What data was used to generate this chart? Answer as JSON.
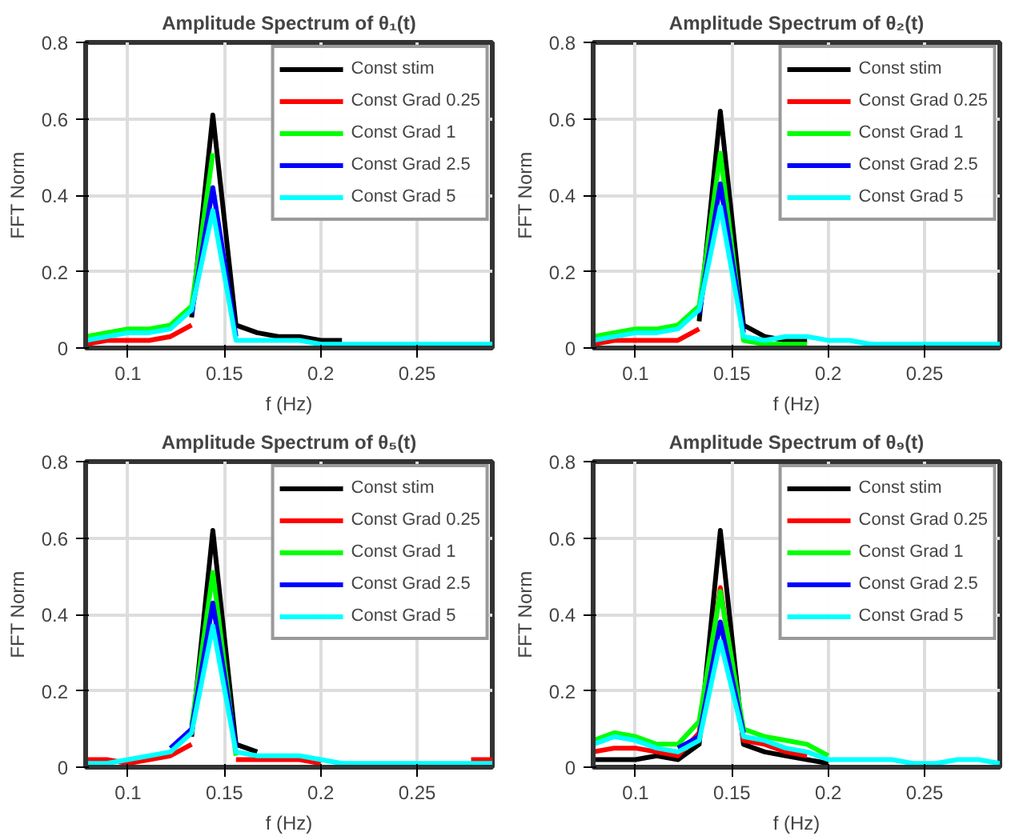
{
  "chart_data": [
    {
      "type": "line",
      "title": "Amplitude Spectrum of θ₁(t)",
      "xlabel": "f (Hz)",
      "ylabel": "FFT Norm",
      "x": [
        0.078,
        0.089,
        0.1,
        0.111,
        0.122,
        0.133,
        0.144,
        0.156,
        0.167,
        0.178,
        0.189,
        0.2,
        0.211,
        0.222,
        0.233,
        0.244,
        0.256,
        0.267,
        0.278,
        0.289
      ],
      "xlim": [
        0.078,
        0.289
      ],
      "ylim": [
        0,
        0.8
      ],
      "xticks": [
        0.1,
        0.15,
        0.2,
        0.25
      ],
      "yticks": [
        0,
        0.2,
        0.4,
        0.6,
        0.8
      ],
      "grid": true,
      "legend": "top right",
      "line_style": "solid",
      "series": [
        {
          "name": "Const stim",
          "color": "#000000",
          "values": [
            null,
            null,
            null,
            null,
            null,
            0.08,
            0.61,
            0.06,
            0.04,
            0.03,
            0.03,
            0.02,
            0.02,
            null,
            null,
            null,
            null,
            null,
            null,
            null
          ]
        },
        {
          "name": "Const Grad 0.25",
          "color": "#ff0000",
          "values": [
            0.01,
            0.02,
            0.02,
            0.02,
            0.03,
            0.06,
            null,
            null,
            null,
            null,
            null,
            null,
            null,
            null,
            null,
            null,
            null,
            null,
            null,
            null
          ]
        },
        {
          "name": "Const Grad 1",
          "color": "#00ff00",
          "values": [
            0.03,
            0.04,
            0.05,
            0.05,
            0.06,
            0.11,
            0.51,
            null,
            null,
            null,
            null,
            null,
            null,
            null,
            null,
            null,
            null,
            null,
            null,
            null
          ]
        },
        {
          "name": "Const Grad 2.5",
          "color": "#0000ff",
          "values": [
            null,
            null,
            null,
            null,
            null,
            0.09,
            0.42,
            0.03,
            null,
            null,
            null,
            null,
            null,
            null,
            null,
            null,
            null,
            null,
            null,
            null
          ]
        },
        {
          "name": "Const Grad 5",
          "color": "#00ffff",
          "values": [
            0.02,
            0.03,
            0.04,
            0.04,
            0.05,
            0.1,
            0.36,
            0.02,
            0.02,
            0.02,
            0.02,
            0.01,
            0.01,
            0.01,
            0.01,
            0.01,
            0.01,
            0.01,
            0.01,
            0.01
          ]
        }
      ]
    },
    {
      "type": "line",
      "title": "Amplitude Spectrum of θ₂(t)",
      "xlabel": "f (Hz)",
      "ylabel": "FFT Norm",
      "x": [
        0.078,
        0.089,
        0.1,
        0.111,
        0.122,
        0.133,
        0.144,
        0.156,
        0.167,
        0.178,
        0.189,
        0.2,
        0.211,
        0.222,
        0.233,
        0.244,
        0.256,
        0.267,
        0.278,
        0.289
      ],
      "xlim": [
        0.078,
        0.289
      ],
      "ylim": [
        0,
        0.8
      ],
      "xticks": [
        0.1,
        0.15,
        0.2,
        0.25
      ],
      "yticks": [
        0,
        0.2,
        0.4,
        0.6,
        0.8
      ],
      "grid": true,
      "legend": "top right",
      "line_style": "solid",
      "series": [
        {
          "name": "Const stim",
          "color": "#000000",
          "values": [
            null,
            null,
            null,
            null,
            null,
            0.07,
            0.62,
            0.06,
            0.03,
            0.02,
            0.02,
            null,
            null,
            null,
            null,
            null,
            null,
            null,
            null,
            null
          ]
        },
        {
          "name": "Const Grad 0.25",
          "color": "#ff0000",
          "values": [
            0.01,
            0.02,
            0.02,
            0.02,
            0.02,
            0.05,
            null,
            null,
            null,
            null,
            null,
            null,
            null,
            null,
            null,
            null,
            null,
            null,
            null,
            null
          ]
        },
        {
          "name": "Const Grad 1",
          "color": "#00ff00",
          "values": [
            0.03,
            0.04,
            0.05,
            0.05,
            0.06,
            0.11,
            0.51,
            0.02,
            0.01,
            0.01,
            0.01,
            null,
            null,
            null,
            null,
            null,
            null,
            null,
            null,
            null
          ]
        },
        {
          "name": "Const Grad 2.5",
          "color": "#0000ff",
          "values": [
            null,
            null,
            null,
            null,
            null,
            0.09,
            0.43,
            0.04,
            null,
            null,
            null,
            null,
            null,
            null,
            null,
            null,
            null,
            null,
            null,
            null
          ]
        },
        {
          "name": "Const Grad 5",
          "color": "#00ffff",
          "values": [
            0.02,
            0.03,
            0.04,
            0.04,
            0.05,
            0.1,
            0.37,
            0.03,
            0.02,
            0.03,
            0.03,
            0.02,
            0.02,
            0.01,
            0.01,
            0.01,
            0.01,
            0.01,
            0.01,
            0.01
          ]
        }
      ]
    },
    {
      "type": "line",
      "title": "Amplitude Spectrum of θ₅(t)",
      "xlabel": "f (Hz)",
      "ylabel": "FFT Norm",
      "x": [
        0.078,
        0.089,
        0.1,
        0.111,
        0.122,
        0.133,
        0.144,
        0.156,
        0.167,
        0.178,
        0.189,
        0.2,
        0.211,
        0.222,
        0.233,
        0.244,
        0.256,
        0.267,
        0.278,
        0.289
      ],
      "xlim": [
        0.078,
        0.289
      ],
      "ylim": [
        0,
        0.8
      ],
      "xticks": [
        0.1,
        0.15,
        0.2,
        0.25
      ],
      "yticks": [
        0,
        0.2,
        0.4,
        0.6,
        0.8
      ],
      "grid": true,
      "legend": "top right",
      "line_style": "solid",
      "series": [
        {
          "name": "Const stim",
          "color": "#000000",
          "values": [
            null,
            null,
            null,
            null,
            null,
            0.08,
            0.62,
            0.06,
            0.04,
            null,
            null,
            null,
            null,
            null,
            null,
            null,
            null,
            null,
            null,
            null
          ]
        },
        {
          "name": "Const Grad 0.25",
          "color": "#ff0000",
          "values": [
            0.02,
            0.02,
            0.01,
            0.02,
            0.03,
            0.06,
            null,
            0.02,
            0.02,
            0.02,
            0.02,
            0.01,
            null,
            null,
            null,
            null,
            null,
            null,
            0.02,
            0.02
          ]
        },
        {
          "name": "Const Grad 1",
          "color": "#00ff00",
          "values": [
            null,
            null,
            null,
            null,
            null,
            0.11,
            0.51,
            0.03,
            null,
            null,
            null,
            null,
            null,
            null,
            null,
            null,
            null,
            null,
            null,
            null
          ]
        },
        {
          "name": "Const Grad 2.5",
          "color": "#0000ff",
          "values": [
            null,
            null,
            null,
            null,
            0.05,
            0.1,
            0.43,
            0.05,
            null,
            null,
            null,
            null,
            null,
            null,
            null,
            null,
            null,
            null,
            null,
            null
          ]
        },
        {
          "name": "Const Grad 5",
          "color": "#00ffff",
          "values": [
            0.01,
            0.01,
            0.02,
            0.03,
            0.04,
            0.09,
            0.37,
            0.04,
            0.03,
            0.03,
            0.03,
            0.02,
            0.01,
            0.01,
            0.01,
            0.01,
            0.01,
            0.01,
            0.01,
            0.01
          ]
        }
      ]
    },
    {
      "type": "line",
      "title": "Amplitude Spectrum of θ₉(t)",
      "xlabel": "f (Hz)",
      "ylabel": "FFT Norm",
      "x": [
        0.078,
        0.089,
        0.1,
        0.111,
        0.122,
        0.133,
        0.144,
        0.156,
        0.167,
        0.178,
        0.189,
        0.2,
        0.211,
        0.222,
        0.233,
        0.244,
        0.256,
        0.267,
        0.278,
        0.289
      ],
      "xlim": [
        0.078,
        0.289
      ],
      "ylim": [
        0,
        0.8
      ],
      "xticks": [
        0.1,
        0.15,
        0.2,
        0.25
      ],
      "yticks": [
        0,
        0.2,
        0.4,
        0.6,
        0.8
      ],
      "grid": true,
      "legend": "top right",
      "line_style": "solid",
      "series": [
        {
          "name": "Const stim",
          "color": "#000000",
          "values": [
            0.02,
            0.02,
            0.02,
            0.03,
            0.02,
            0.06,
            0.62,
            0.06,
            0.04,
            0.03,
            0.02,
            0.01,
            null,
            null,
            null,
            null,
            null,
            null,
            null,
            null
          ]
        },
        {
          "name": "Const Grad 0.25",
          "color": "#ff0000",
          "values": [
            0.04,
            0.05,
            0.05,
            0.04,
            0.03,
            0.09,
            0.47,
            0.07,
            0.06,
            0.04,
            0.03,
            null,
            null,
            null,
            null,
            null,
            null,
            null,
            null,
            null
          ]
        },
        {
          "name": "Const Grad 1",
          "color": "#00ff00",
          "values": [
            0.07,
            0.09,
            0.08,
            0.06,
            0.06,
            0.12,
            0.46,
            0.1,
            0.08,
            0.07,
            0.06,
            0.03,
            null,
            null,
            null,
            null,
            null,
            null,
            null,
            null
          ]
        },
        {
          "name": "Const Grad 2.5",
          "color": "#0000ff",
          "values": [
            null,
            null,
            null,
            null,
            0.05,
            0.08,
            0.38,
            0.09,
            null,
            null,
            null,
            null,
            null,
            null,
            null,
            null,
            null,
            null,
            null,
            null
          ]
        },
        {
          "name": "Const Grad 5",
          "color": "#00ffff",
          "values": [
            0.06,
            0.08,
            0.07,
            0.05,
            0.04,
            0.07,
            0.33,
            0.08,
            0.07,
            0.05,
            0.04,
            0.02,
            0.02,
            0.02,
            0.02,
            0.01,
            0.01,
            0.02,
            0.02,
            0.01
          ]
        }
      ]
    }
  ]
}
